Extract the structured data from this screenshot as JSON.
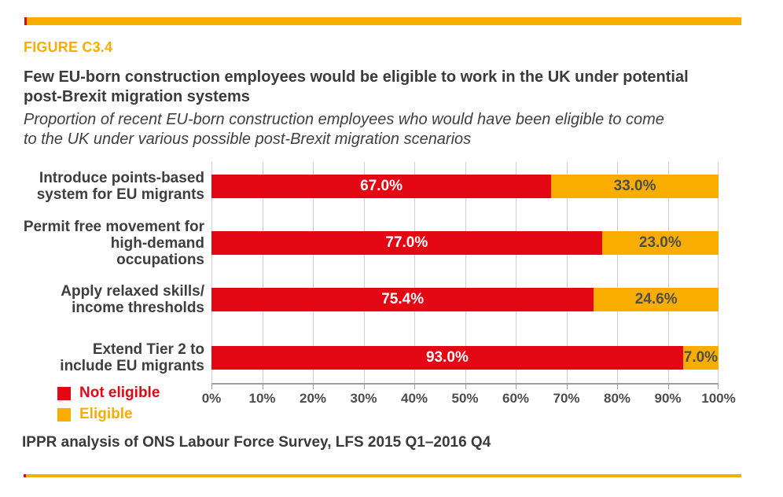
{
  "page": {
    "figure_label": "FIGURE C3.4",
    "title": "Few EU-born construction employees would be eligible to work in the UK under potential\npost-Brexit migration systems",
    "subtitle": "Proportion of recent EU-born construction employees who would have been eligible to come\nto the UK under various possible post-Brexit migration scenarios",
    "source": "IPPR analysis of ONS Labour Force Survey, LFS 2015 Q1–2016 Q4"
  },
  "colors": {
    "red": "#e30613",
    "gold": "#f8ad00",
    "grid": "#cfcfcf",
    "axis": "#9e9e9e",
    "dark_text": "#3b3b3b",
    "tick_text": "#4d4d4d",
    "label_on_red": "#ffffff",
    "label_on_gold": "#4e4e4e"
  },
  "legend": {
    "items": [
      {
        "label": "Not eligible",
        "color_key": "red"
      },
      {
        "label": "Eligible",
        "color_key": "gold"
      }
    ]
  },
  "chart_data": {
    "type": "bar",
    "orientation": "horizontal",
    "stacked": true,
    "title": "Few EU-born construction employees would be eligible to work in the UK under potential post-Brexit migration systems",
    "categories": [
      "Introduce points-based\nsystem for EU migrants",
      "Permit free movement for\nhigh-demand occupations",
      "Apply relaxed skills/\nincome thresholds",
      "Extend Tier 2 to\ninclude EU migrants"
    ],
    "series": [
      {
        "name": "Not eligible",
        "color": "#e30613",
        "values": [
          67.0,
          77.0,
          75.4,
          93.0
        ],
        "labels": [
          "67.0%",
          "77.0%",
          "75.4%",
          "93.0%"
        ]
      },
      {
        "name": "Eligible",
        "color": "#f8ad00",
        "values": [
          33.0,
          23.0,
          24.6,
          7.0
        ],
        "labels": [
          "33.0%",
          "23.0%",
          "24.6%",
          "7.0%"
        ]
      }
    ],
    "x_ticks": [
      "0%",
      "10%",
      "20%",
      "30%",
      "40%",
      "50%",
      "60%",
      "70%",
      "80%",
      "90%",
      "100%"
    ],
    "xlim": [
      0,
      100
    ],
    "grid": true,
    "legend_position": "bottom-left"
  }
}
